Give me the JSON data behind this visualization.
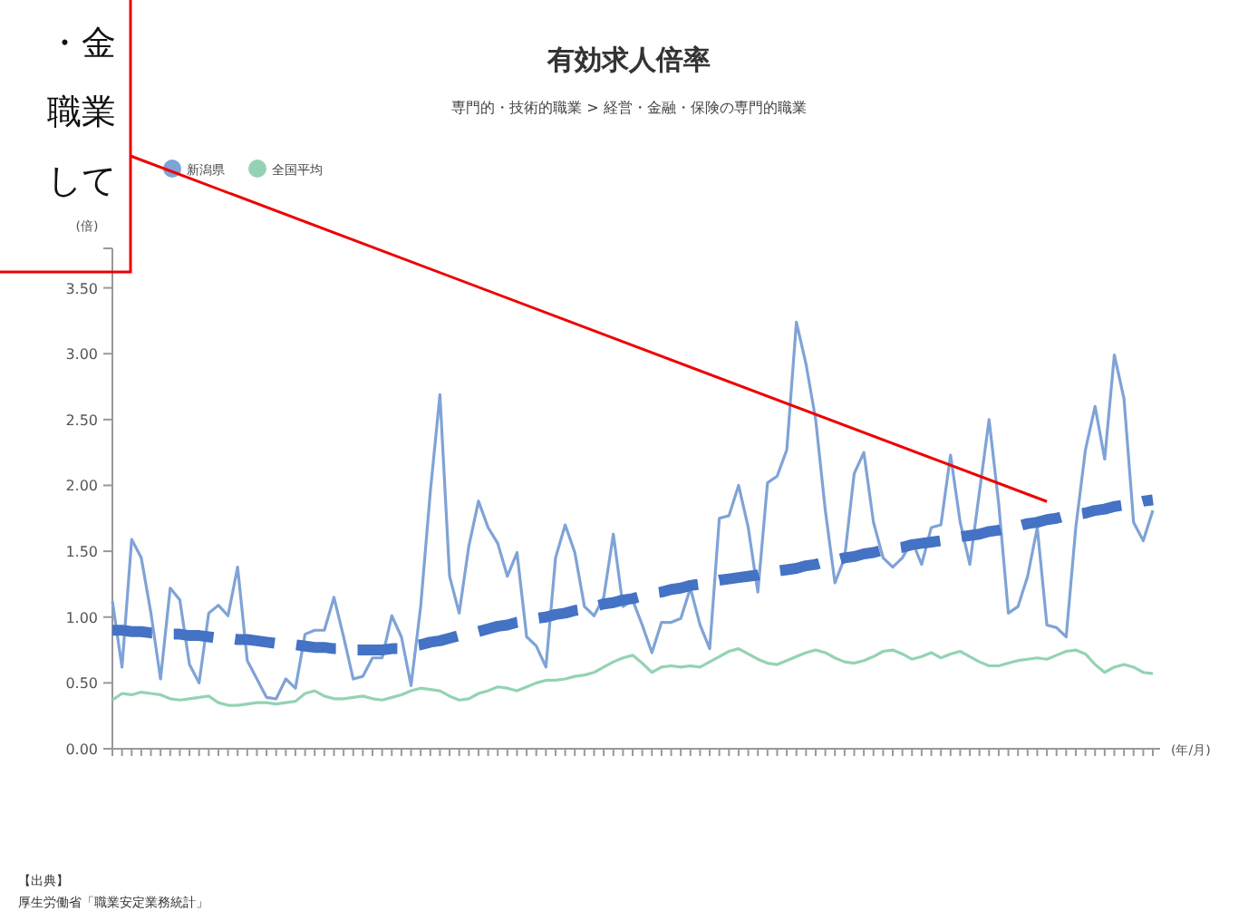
{
  "chart_data": {
    "type": "line",
    "title": "有効求人倍率",
    "subtitle": "専門的・技術的職業 > 経営・金融・保険の専門的職業",
    "ylabel": "(倍)",
    "xlabel": "(年/月)",
    "legend": "top left",
    "marker": "none",
    "grid": false,
    "annotations": [
      "・金",
      "職業",
      "して",
      "【出典】",
      "厚生労働省「職業安定業務統計」"
    ],
    "ylim": [
      0,
      3.8
    ],
    "yticks": [
      {
        "value": 0,
        "label": "0.00"
      },
      {
        "value": 0.5,
        "label": "0.50"
      },
      {
        "value": 1,
        "label": "1.00"
      },
      {
        "value": 1.5,
        "label": "1.50"
      },
      {
        "value": 2,
        "label": "2.00"
      },
      {
        "value": 2.5,
        "label": "2.50"
      },
      {
        "value": 3,
        "label": "3.00"
      },
      {
        "value": 3.5,
        "label": "3.50"
      }
    ],
    "categories": [
      null,
      null,
      null,
      null,
      null,
      null,
      null,
      null,
      null,
      null,
      null,
      null,
      null,
      null,
      null,
      null,
      null,
      null,
      null,
      null,
      null,
      null,
      null,
      null,
      null,
      null,
      null,
      null,
      null,
      null,
      null,
      null,
      null,
      null,
      null,
      null,
      null,
      null,
      null,
      null,
      null,
      null,
      null,
      null,
      null,
      null,
      null,
      null,
      null,
      null,
      null,
      null,
      null,
      null,
      null,
      null,
      null,
      null,
      null,
      null,
      null,
      null,
      null,
      null,
      null,
      null,
      null,
      null,
      null,
      null,
      null,
      null,
      null,
      null,
      null,
      null,
      null,
      null,
      null,
      null,
      null,
      null,
      null,
      null,
      null,
      null,
      null,
      null,
      null,
      null,
      null,
      null,
      null,
      null,
      null,
      null,
      null,
      null,
      null,
      null,
      null,
      null,
      null,
      null,
      null,
      null,
      null,
      null,
      null
    ],
    "series": [
      {
        "name": "新潟県",
        "color": "#7fa3d6",
        "values": [
          1.12,
          0.62,
          1.59,
          1.45,
          1.03,
          0.53,
          1.22,
          1.13,
          0.64,
          0.5,
          1.03,
          1.09,
          1.01,
          1.38,
          0.67,
          0.53,
          0.39,
          0.38,
          0.53,
          0.46,
          0.87,
          0.9,
          0.9,
          1.15,
          0.85,
          0.53,
          0.55,
          0.69,
          0.69,
          1.01,
          0.85,
          0.48,
          1.08,
          1.95,
          2.69,
          1.31,
          1.03,
          1.54,
          1.88,
          1.68,
          1.56,
          1.31,
          1.49,
          0.85,
          0.78,
          0.62,
          1.45,
          1.7,
          1.49,
          1.08,
          1.01,
          1.15,
          1.63,
          1.08,
          1.13,
          0.94,
          0.73,
          0.96,
          0.96,
          0.99,
          1.22,
          0.94,
          0.76,
          1.75,
          1.77,
          2.0,
          1.68,
          1.19,
          2.02,
          2.07,
          2.27,
          3.24,
          2.92,
          2.5,
          1.81,
          1.26,
          1.45,
          2.09,
          2.25,
          1.72,
          1.45,
          1.38,
          1.45,
          1.58,
          1.4,
          1.68,
          1.7,
          2.23,
          1.72,
          1.4,
          1.95,
          2.5,
          1.86,
          1.03,
          1.08,
          1.31,
          1.68,
          0.94,
          0.92,
          0.85,
          1.68,
          2.27,
          2.6,
          2.2,
          2.99,
          2.66,
          1.72,
          1.58,
          1.81
        ]
      },
      {
        "name": "全国平均",
        "color": "#93d3b3",
        "values": [
          0.37,
          0.42,
          0.41,
          0.43,
          0.42,
          0.41,
          0.38,
          0.37,
          0.38,
          0.39,
          0.4,
          0.35,
          0.33,
          0.33,
          0.34,
          0.35,
          0.35,
          0.34,
          0.35,
          0.36,
          0.42,
          0.44,
          0.4,
          0.38,
          0.38,
          0.39,
          0.4,
          0.38,
          0.37,
          0.39,
          0.41,
          0.44,
          0.46,
          0.45,
          0.44,
          0.4,
          0.37,
          0.38,
          0.42,
          0.44,
          0.47,
          0.46,
          0.44,
          0.47,
          0.5,
          0.52,
          0.52,
          0.53,
          0.55,
          0.56,
          0.58,
          0.62,
          0.66,
          0.69,
          0.71,
          0.65,
          0.58,
          0.62,
          0.63,
          0.62,
          0.63,
          0.62,
          0.66,
          0.7,
          0.74,
          0.76,
          0.72,
          0.68,
          0.65,
          0.64,
          0.67,
          0.7,
          0.73,
          0.75,
          0.73,
          0.69,
          0.66,
          0.65,
          0.67,
          0.7,
          0.74,
          0.75,
          0.72,
          0.68,
          0.7,
          0.73,
          0.69,
          0.72,
          0.74,
          0.7,
          0.66,
          0.63,
          0.63,
          0.65,
          0.67,
          0.68,
          0.69,
          0.68,
          0.71,
          0.74,
          0.75,
          0.72,
          0.64,
          0.58,
          0.62,
          0.64,
          0.62,
          0.58,
          0.57
        ]
      },
      {
        "type": "line",
        "color": "#4472c4",
        "line_style": "dashed",
        "values": [
          0.9,
          0.9,
          0.89,
          0.89,
          0.88,
          0.88,
          0.87,
          0.87,
          0.86,
          0.86,
          0.85,
          0.84,
          0.84,
          0.83,
          0.83,
          0.82,
          0.81,
          0.8,
          0.8,
          0.79,
          0.78,
          0.77,
          0.77,
          0.76,
          0.76,
          0.75,
          0.75,
          0.75,
          0.75,
          0.76,
          0.76,
          0.78,
          0.79,
          0.81,
          0.82,
          0.84,
          0.86,
          0.88,
          0.89,
          0.91,
          0.93,
          0.94,
          0.96,
          0.97,
          0.99,
          1.0,
          1.02,
          1.03,
          1.05,
          1.06,
          1.08,
          1.1,
          1.11,
          1.13,
          1.14,
          1.16,
          1.18,
          1.19,
          1.21,
          1.22,
          1.24,
          1.25,
          1.26,
          1.28,
          1.29,
          1.3,
          1.31,
          1.32,
          1.34,
          1.35,
          1.36,
          1.37,
          1.39,
          1.4,
          1.42,
          1.43,
          1.45,
          1.46,
          1.48,
          1.49,
          1.51,
          1.52,
          1.53,
          1.55,
          1.56,
          1.57,
          1.58,
          1.6,
          1.61,
          1.62,
          1.63,
          1.65,
          1.66,
          1.68,
          1.69,
          1.71,
          1.72,
          1.74,
          1.75,
          1.77,
          1.78,
          1.79,
          1.81,
          1.82,
          1.84,
          1.85,
          1.86,
          1.88,
          1.89
        ]
      }
    ]
  }
}
